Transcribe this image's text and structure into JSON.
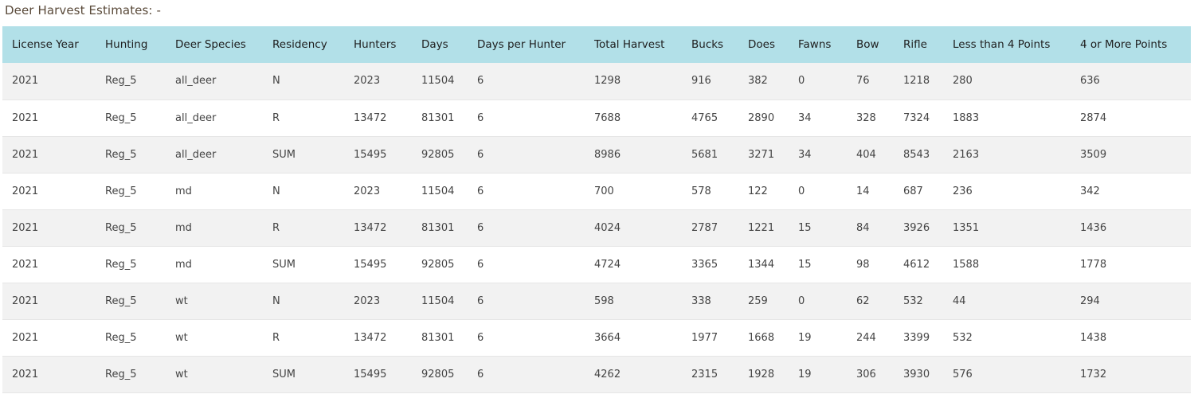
{
  "page": {
    "title": "Deer Harvest Estimates: -"
  },
  "table": {
    "columns": [
      "License Year",
      "Hunting",
      "Deer Species",
      "Residency",
      "Hunters",
      "Days",
      "Days per Hunter",
      "Total Harvest",
      "Bucks",
      "Does",
      "Fawns",
      "Bow",
      "Rifle",
      "Less than 4 Points",
      "4 or More Points"
    ],
    "rows": [
      [
        "2021",
        "Reg_5",
        "all_deer",
        "N",
        "2023",
        "11504",
        "6",
        "1298",
        "916",
        "382",
        "0",
        "76",
        "1218",
        "280",
        "636"
      ],
      [
        "2021",
        "Reg_5",
        "all_deer",
        "R",
        "13472",
        "81301",
        "6",
        "7688",
        "4765",
        "2890",
        "34",
        "328",
        "7324",
        "1883",
        "2874"
      ],
      [
        "2021",
        "Reg_5",
        "all_deer",
        "SUM",
        "15495",
        "92805",
        "6",
        "8986",
        "5681",
        "3271",
        "34",
        "404",
        "8543",
        "2163",
        "3509"
      ],
      [
        "2021",
        "Reg_5",
        "md",
        "N",
        "2023",
        "11504",
        "6",
        "700",
        "578",
        "122",
        "0",
        "14",
        "687",
        "236",
        "342"
      ],
      [
        "2021",
        "Reg_5",
        "md",
        "R",
        "13472",
        "81301",
        "6",
        "4024",
        "2787",
        "1221",
        "15",
        "84",
        "3926",
        "1351",
        "1436"
      ],
      [
        "2021",
        "Reg_5",
        "md",
        "SUM",
        "15495",
        "92805",
        "6",
        "4724",
        "3365",
        "1344",
        "15",
        "98",
        "4612",
        "1588",
        "1778"
      ],
      [
        "2021",
        "Reg_5",
        "wt",
        "N",
        "2023",
        "11504",
        "6",
        "598",
        "338",
        "259",
        "0",
        "62",
        "532",
        "44",
        "294"
      ],
      [
        "2021",
        "Reg_5",
        "wt",
        "R",
        "13472",
        "81301",
        "6",
        "3664",
        "1977",
        "1668",
        "19",
        "244",
        "3399",
        "532",
        "1438"
      ],
      [
        "2021",
        "Reg_5",
        "wt",
        "SUM",
        "15495",
        "92805",
        "6",
        "4262",
        "2315",
        "1928",
        "19",
        "306",
        "3930",
        "576",
        "1732"
      ]
    ]
  },
  "colors": {
    "header_bg": "#b2e0e8",
    "row_alt_bg": "#f2f2f2",
    "title_color": "#5a4a3a"
  }
}
